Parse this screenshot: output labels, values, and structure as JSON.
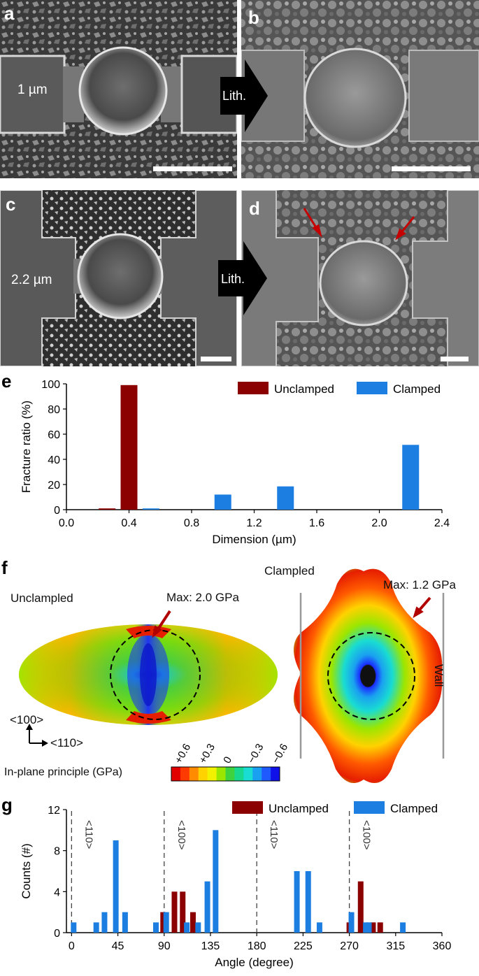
{
  "figure": {
    "panel_labels": {
      "a": "a",
      "b": "b",
      "c": "c",
      "d": "d",
      "e": "e",
      "f": "f",
      "g": "g"
    },
    "sem": {
      "dim_top": "1 µm",
      "dim_bottom": "2.2 µm",
      "lith_label": "Lith."
    },
    "stress_maps": {
      "unclamped_title": "Unclampled",
      "clamped_title": "Clampled",
      "unclamped_max": "Max: 2.0 GPa",
      "clamped_max": "Max: 1.2 GPa",
      "wall_label": "Wall",
      "dir_vertical": "<100>",
      "dir_horizontal": "<110>",
      "colorbar_title": "In-plane principle (GPa)",
      "colorbar_ticks": [
        "+0.6",
        "+0.3",
        "0",
        "−0.3",
        "−0.6"
      ],
      "colorbar_colors": [
        "#e10000",
        "#ff3a00",
        "#ff8c00",
        "#ffd200",
        "#f2f200",
        "#9be600",
        "#3ed23e",
        "#18d890",
        "#19dcd2",
        "#1aa0f0",
        "#1f5aff",
        "#1010e8"
      ]
    }
  },
  "colors": {
    "unclamped": "#8b0000",
    "clamped": "#1c7ee0"
  },
  "chart_data": [
    {
      "type": "bar",
      "xlabel": "Dimension (µm)",
      "ylabel": "Fracture ratio (%)",
      "xlim": [
        0.0,
        2.4
      ],
      "ylim": [
        0,
        100
      ],
      "xticks": [
        "0.0",
        "0.4",
        "0.8",
        "1.2",
        "1.6",
        "2.0",
        "2.4"
      ],
      "yticks": [
        "0",
        "20",
        "40",
        "60",
        "80",
        "100"
      ],
      "legend": [
        "Unclamped",
        "Clamped"
      ],
      "series": [
        {
          "name": "Unclamped",
          "points": [
            [
              0.26,
              1
            ],
            [
              0.4,
              99
            ]
          ]
        },
        {
          "name": "Clamped",
          "points": [
            [
              0.54,
              1
            ],
            [
              1.0,
              12
            ],
            [
              1.4,
              18.5
            ],
            [
              2.2,
              51.5
            ]
          ]
        }
      ]
    },
    {
      "type": "bar",
      "xlabel": "Angle (degree)",
      "ylabel": "Counts (#)",
      "xlim": [
        -5,
        360
      ],
      "ylim": [
        0,
        12
      ],
      "xticks": [
        "0",
        "45",
        "90",
        "135",
        "180",
        "225",
        "270",
        "315",
        "360"
      ],
      "yticks": [
        "0",
        "4",
        "8",
        "12"
      ],
      "legend": [
        "Unclamped",
        "Clamped"
      ],
      "reference_lines": [
        {
          "x": 0,
          "label": "<110>"
        },
        {
          "x": 90,
          "label": "<100>"
        },
        {
          "x": 180,
          "label": "<110>"
        },
        {
          "x": 270,
          "label": "<100>"
        }
      ],
      "series": [
        {
          "name": "Unclamped",
          "points": [
            [
              89,
              2
            ],
            [
              100,
              4
            ],
            [
              108,
              4
            ],
            [
              118,
              2
            ],
            [
              270,
              1
            ],
            [
              281,
              5
            ],
            [
              293,
              1
            ],
            [
              300,
              1
            ]
          ]
        },
        {
          "name": "Clamped",
          "points": [
            [
              2,
              1
            ],
            [
              24,
              1
            ],
            [
              32,
              2
            ],
            [
              43,
              9
            ],
            [
              52,
              2
            ],
            [
              82,
              1
            ],
            [
              92,
              2
            ],
            [
              112,
              1
            ],
            [
              123,
              1
            ],
            [
              132,
              5
            ],
            [
              140,
              10
            ],
            [
              219,
              6
            ],
            [
              230,
              6
            ],
            [
              241,
              1
            ],
            [
              272,
              2
            ],
            [
              286,
              1
            ],
            [
              289,
              1
            ],
            [
              322,
              1
            ]
          ]
        }
      ]
    }
  ]
}
